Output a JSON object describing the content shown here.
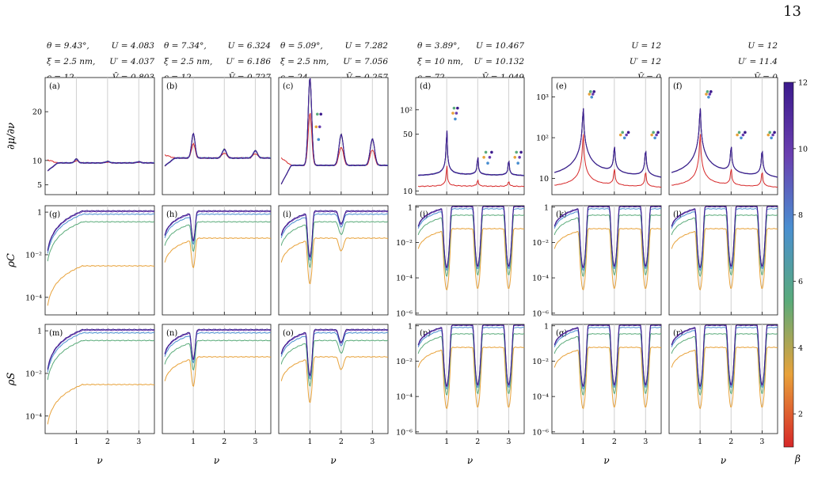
{
  "page_number": "13",
  "panel_params": [
    {
      "left": [
        "θ = 9.43°,",
        "ξ = 2.5 nm,",
        "ϵ = 12"
      ],
      "right": [
        "U = 4.083",
        "U′ = 4.037",
        "V̄ = 0.803"
      ]
    },
    {
      "left": [
        "θ = 7.34°,",
        "ξ = 2.5 nm,",
        "ϵ = 12"
      ],
      "right": [
        "U = 6.324",
        "U′ = 6.186",
        "V̄ = 0.727"
      ]
    },
    {
      "left": [
        "θ = 5.09°,",
        "ξ = 2.5 nm,",
        "ϵ = 24"
      ],
      "right": [
        "U = 7.282",
        "U′ = 7.056",
        "V̄ = 0.257"
      ]
    },
    {
      "left": [
        "θ = 3.89°,",
        "ξ = 10 nm,",
        "ϵ = 72"
      ],
      "right": [
        "U = 10.467",
        "U′ = 10.132",
        "V̄ = 1.049"
      ]
    },
    {
      "left": [
        "",
        "",
        ""
      ],
      "right": [
        "U = 12",
        "U′ = 12",
        "V̄ = 0"
      ]
    },
    {
      "left": [
        "",
        "",
        ""
      ],
      "right": [
        "U = 12",
        "U′ = 11.4",
        "V̄ = 0"
      ]
    }
  ],
  "colorbar": {
    "label": "β",
    "ticks": [
      "2",
      "4",
      "6",
      "8",
      "10",
      "12"
    ],
    "range": [
      1,
      12
    ],
    "colors": [
      "#d62728",
      "#e8a23a",
      "#5aab7a",
      "#4a8fd0",
      "#6a3fb0",
      "#3b1a8c"
    ]
  },
  "chart_data": {
    "type": "line",
    "x": {
      "label": "ν",
      "range": [
        0,
        3.5
      ],
      "ticks": [
        "1",
        "2",
        "3"
      ]
    },
    "series_betas": [
      1,
      2,
      4,
      6,
      8,
      10,
      12
    ],
    "series_colors": [
      "#d62728",
      "#e8a23a",
      "#5aab7a",
      "#4a8fd0",
      "#6a3fb0",
      "#3b1a8c"
    ],
    "rows": [
      {
        "row": "compressibility",
        "ylabel": "∂μ/∂ν",
        "panels": [
          {
            "id": "(a)",
            "scale": "linear",
            "ylim": [
              3,
              27
            ],
            "yticks": [
              "5",
              "10",
              "20"
            ],
            "peaks": [
              1.0,
              1.0
            ],
            "baseline": 9.5
          },
          {
            "id": "(b)",
            "scale": "linear",
            "ylim": [
              3,
              27
            ],
            "yticks": [],
            "peaks": [
              16,
              14
            ],
            "baseline": 10.5
          },
          {
            "id": "(c)",
            "scale": "linear",
            "ylim": [
              3,
              27
            ],
            "yticks": [],
            "peaks": [
              27,
              13
            ],
            "baseline": 9
          },
          {
            "id": "(d)",
            "scale": "log",
            "ylim": [
              9,
              250
            ],
            "yticks": [
              "10",
              "50",
              "10²"
            ],
            "peaks": [
              140,
              40
            ],
            "baseline": 15
          },
          {
            "id": "(e)",
            "scale": "log",
            "ylim": [
              4,
              3000
            ],
            "yticks": [
              "10",
              "10²",
              "10³"
            ],
            "peaks": [
              1800,
              180
            ],
            "baseline": 7
          },
          {
            "id": "(f)",
            "scale": "log",
            "ylim": [
              4,
              3000
            ],
            "yticks": [],
            "peaks": [
              1800,
              180
            ],
            "baseline": 7
          }
        ]
      },
      {
        "row": "charge stiffness",
        "ylabel": "ρC",
        "panels": [
          {
            "id": "(g)",
            "scale": "log",
            "ylim": [
              1.5e-05,
              2
            ],
            "yticks": [
              "1",
              "10⁻²",
              "10⁻⁴"
            ]
          },
          {
            "id": "(h)",
            "scale": "log",
            "ylim": [
              1.5e-05,
              2
            ],
            "yticks": []
          },
          {
            "id": "(i)",
            "scale": "log",
            "ylim": [
              1.5e-05,
              2
            ],
            "yticks": []
          },
          {
            "id": "(j)",
            "scale": "log",
            "ylim": [
              8e-07,
              1.2
            ],
            "yticks": [
              "1",
              "10⁻²",
              "10⁻⁴",
              "10⁻⁶"
            ]
          },
          {
            "id": "(k)",
            "scale": "log",
            "ylim": [
              8e-07,
              1.2
            ],
            "yticks": [
              "1",
              "10⁻²",
              "10⁻⁴",
              "10⁻⁶"
            ]
          },
          {
            "id": "(l)",
            "scale": "log",
            "ylim": [
              8e-07,
              1.2
            ],
            "yticks": []
          }
        ]
      },
      {
        "row": "spin stiffness",
        "ylabel": "ρS",
        "panels": [
          {
            "id": "(m)",
            "scale": "log",
            "ylim": [
              1.5e-05,
              2
            ],
            "yticks": [
              "1",
              "10⁻²",
              "10⁻⁴"
            ]
          },
          {
            "id": "(n)",
            "scale": "log",
            "ylim": [
              1.5e-05,
              2
            ],
            "yticks": []
          },
          {
            "id": "(o)",
            "scale": "log",
            "ylim": [
              1.5e-05,
              2
            ],
            "yticks": []
          },
          {
            "id": "(p)",
            "scale": "log",
            "ylim": [
              8e-07,
              1.2
            ],
            "yticks": [
              "1",
              "10⁻²",
              "10⁻⁴",
              "10⁻⁶"
            ]
          },
          {
            "id": "(q)",
            "scale": "log",
            "ylim": [
              8e-07,
              1.2
            ],
            "yticks": [
              "1",
              "10⁻²",
              "10⁻⁴",
              "10⁻⁶"
            ]
          },
          {
            "id": "(r)",
            "scale": "log",
            "ylim": [
              8e-07,
              1.2
            ],
            "yticks": []
          }
        ]
      }
    ]
  }
}
